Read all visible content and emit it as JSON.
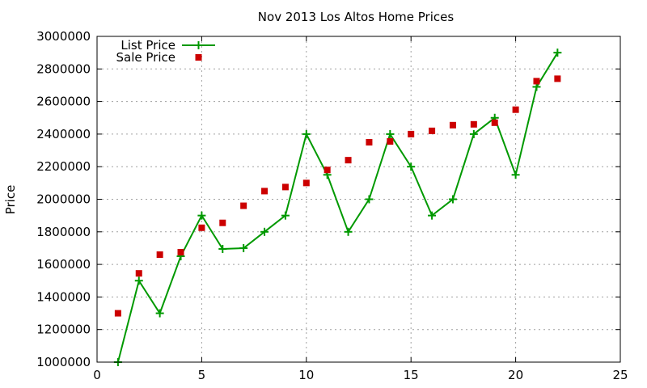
{
  "chart_data": {
    "type": "line",
    "title": "Nov 2013 Los Altos Home Prices",
    "xlabel": "",
    "ylabel": "Price",
    "xlim": [
      0,
      25
    ],
    "ylim": [
      1000000,
      3000000
    ],
    "x_ticks": [
      0,
      5,
      10,
      15,
      20,
      25
    ],
    "y_ticks": [
      1000000,
      1200000,
      1400000,
      1600000,
      1800000,
      2000000,
      2200000,
      2400000,
      2600000,
      2800000,
      3000000
    ],
    "grid": true,
    "legend_position": "top-left",
    "series": [
      {
        "name": "List Price",
        "style": "line-with-plus-markers",
        "color": "#009900",
        "x": [
          1,
          2,
          3,
          4,
          5,
          6,
          7,
          8,
          9,
          10,
          11,
          12,
          13,
          14,
          15,
          16,
          17,
          18,
          19,
          20,
          21,
          22
        ],
        "values": [
          1000000,
          1500000,
          1300000,
          1650000,
          1900000,
          1695000,
          1700000,
          1800000,
          1900000,
          2400000,
          2150000,
          1800000,
          2000000,
          2400000,
          2200000,
          1900000,
          2000000,
          2400000,
          2500000,
          2150000,
          2690000,
          2900000
        ]
      },
      {
        "name": "Sale Price",
        "style": "square-markers",
        "color": "#cc0000",
        "x": [
          1,
          2,
          3,
          4,
          5,
          6,
          7,
          8,
          9,
          10,
          11,
          12,
          13,
          14,
          15,
          16,
          17,
          18,
          19,
          20,
          21,
          22
        ],
        "values": [
          1300000,
          1545000,
          1660000,
          1675000,
          1825000,
          1855000,
          1960000,
          2050000,
          2075000,
          2100000,
          2180000,
          2240000,
          2350000,
          2355000,
          2400000,
          2420000,
          2455000,
          2460000,
          2470000,
          2550000,
          2725000,
          2740000
        ]
      }
    ]
  }
}
